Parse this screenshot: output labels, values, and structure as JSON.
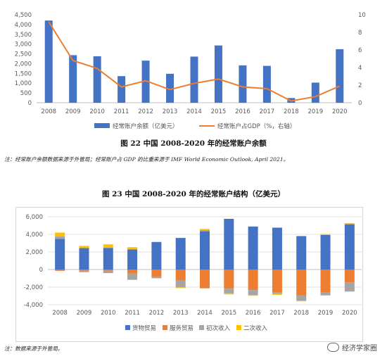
{
  "chart_data": [
    {
      "type": "bar+line",
      "caption": "图 22  中国 2008-2020 年的经常账户余额",
      "categories": [
        "2008",
        "2009",
        "2010",
        "2011",
        "2012",
        "2013",
        "2014",
        "2015",
        "2016",
        "2017",
        "2018",
        "2019",
        "2020"
      ],
      "y_left": {
        "ticks": [
          "0",
          "500",
          "1,000",
          "1,500",
          "2,000",
          "2,500",
          "3,000",
          "3,500",
          "4,000",
          "4,500"
        ],
        "ylim": [
          0,
          4500
        ]
      },
      "y_right": {
        "ticks": [
          "0",
          "2",
          "4",
          "6",
          "8",
          "10"
        ],
        "ylim": [
          0,
          10
        ]
      },
      "series": [
        {
          "name": "经常账户余额（亿美元）",
          "kind": "bar",
          "color": "#4472c4",
          "values": [
            4206,
            2433,
            2378,
            1361,
            2154,
            1482,
            2360,
            2930,
            1913,
            1887,
            241,
            1029,
            2740
          ]
        },
        {
          "name": "经常账户占GDP（%，右轴）",
          "kind": "line",
          "axis": "right",
          "color": "#ed7d31",
          "values": [
            9.2,
            4.8,
            3.9,
            1.8,
            2.5,
            1.5,
            2.2,
            2.7,
            1.8,
            1.6,
            0.2,
            0.7,
            1.9
          ]
        }
      ],
      "legend_position": "bottom",
      "grid": false
    },
    {
      "type": "stacked-bar",
      "caption": "图 23 中国 2008-2020 年的经常账户结构（亿美元）",
      "categories": [
        "2008",
        "2009",
        "2010",
        "2011",
        "2012",
        "2013",
        "2014",
        "2015",
        "2016",
        "2017",
        "2018",
        "2019",
        "2020"
      ],
      "y_axis": {
        "ticks": [
          "-4,000",
          "-2,000",
          "0",
          "2,000",
          "4,000",
          "6,000"
        ],
        "ylim": [
          -4000,
          6000
        ]
      },
      "series": [
        {
          "name": "货物贸易",
          "color": "#4472c4",
          "values": [
            3488,
            2435,
            2464,
            2287,
            3116,
            3590,
            4350,
            5762,
            4889,
            4759,
            3801,
            3930,
            5150
          ]
        },
        {
          "name": "服务贸易",
          "color": "#ed7d31",
          "values": [
            -150,
            -150,
            -150,
            -468,
            -797,
            -1236,
            -2137,
            -2183,
            -2331,
            -2589,
            -2922,
            -2611,
            -1453
          ]
        },
        {
          "name": "初次收入",
          "color": "#a5a5a5",
          "values": [
            290,
            -150,
            -260,
            -703,
            -199,
            -784,
            133,
            -522,
            -549,
            -165,
            -614,
            -330,
            -1052
          ]
        },
        {
          "name": "二次收入",
          "color": "#ffc000",
          "values": [
            420,
            250,
            400,
            250,
            40,
            -90,
            130,
            -120,
            -100,
            -120,
            -80,
            100,
            120
          ]
        }
      ],
      "legend_position": "bottom",
      "grid": true
    }
  ],
  "notes": {
    "fig22": "注：经常账户余额数据来源于外管局；经常账户占 GDP 的比重来源于 IMF World Economic Outlook, April 2021。",
    "fig23": "注：数据来源于外管局。"
  },
  "watermark": "经济学家圈"
}
